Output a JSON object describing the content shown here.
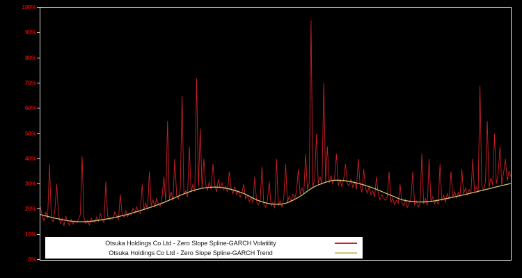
{
  "window": {
    "background": "#000000"
  },
  "chart_data": {
    "type": "line",
    "title": "",
    "xlabel": "",
    "ylabel": "",
    "ylim": [
      0,
      100
    ],
    "grid": false,
    "legend_position": "bottom-left",
    "axis_label_color": "#dd0000",
    "plot_border_color": "#e2e2e2",
    "yticks": [
      {
        "value": 100,
        "label": "100%"
      },
      {
        "value": 90,
        "label": "90%"
      },
      {
        "value": 80,
        "label": "80%"
      },
      {
        "value": 70,
        "label": "70%"
      },
      {
        "value": 60,
        "label": "60%"
      },
      {
        "value": 50,
        "label": "50%"
      },
      {
        "value": 40,
        "label": "40%"
      },
      {
        "value": 30,
        "label": "30%"
      },
      {
        "value": 20,
        "label": "20%"
      },
      {
        "value": 10,
        "label": "10%"
      },
      {
        "value": 0,
        "label": "0%"
      }
    ],
    "series": [
      {
        "name": "Otsuka Holdings Co Ltd - Zero Slope Spline-GARCH Volatility",
        "color": "#cd2026",
        "unit": "%",
        "values": [
          21,
          17.5,
          15.5,
          19,
          16.5,
          38,
          17,
          15,
          20,
          30,
          18,
          14.5,
          16.5,
          13.5,
          17.5,
          15,
          13.8,
          16,
          14.2,
          15.5,
          14.8,
          16.2,
          18,
          41,
          17,
          14.5,
          15.8,
          13.9,
          16.5,
          15.2,
          14.9,
          17,
          15.3,
          18.5,
          16,
          14.8,
          31,
          17.5,
          15.9,
          16.4,
          16.2,
          19,
          17.4,
          15.8,
          26,
          18,
          16.9,
          19.5,
          17.2,
          18.3,
          17.8,
          20.5,
          18.6,
          21,
          19.2,
          18.4,
          30,
          20.1,
          22.5,
          19.8,
          35,
          21.5,
          23.8,
          20.9,
          24.5,
          22,
          21.3,
          25,
          33,
          22.8,
          55,
          24,
          27,
          23.5,
          40,
          25.5,
          24.2,
          28,
          65,
          26,
          27.5,
          25,
          45,
          26.8,
          30,
          27,
          72,
          29,
          52,
          28.2,
          40,
          30,
          27.5,
          31,
          28,
          38,
          29.5,
          27,
          32,
          28.5,
          30.5,
          27.8,
          29.3,
          26.9,
          35,
          28.4,
          26.2,
          29,
          25.8,
          27.3,
          24.9,
          26.8,
          30,
          24.2,
          25.6,
          23.1,
          24.8,
          22.5,
          33,
          23.4,
          21.8,
          23.5,
          37,
          22,
          20.9,
          23.8,
          31,
          21.4,
          22.7,
          20.5,
          40,
          21.5,
          23.4,
          20.8,
          24.6,
          38,
          22.9,
          25.3,
          23.1,
          26,
          24.4,
          27,
          36,
          25.9,
          28.5,
          26.3,
          42,
          28,
          30.5,
          95,
          29,
          32,
          50,
          30.2,
          33,
          29.8,
          70,
          31,
          45,
          30.4,
          33.5,
          30,
          32.8,
          42,
          29.5,
          31.8,
          28.9,
          32.4,
          38,
          30.1,
          29.3,
          32,
          28.6,
          31.2,
          27.9,
          40,
          29.4,
          26.8,
          36,
          28.3,
          26.5,
          29,
          25.8,
          27.4,
          24.9,
          33,
          26.1,
          23.8,
          25.9,
          24.4,
          23.6,
          25.2,
          35,
          22.8,
          24.5,
          21.9,
          23.7,
          22.4,
          30,
          22.6,
          21.5,
          23.9,
          20.8,
          22.6,
          24.2,
          35,
          21.7,
          23.3,
          20.9,
          22.4,
          42,
          22.1,
          24.3,
          21.6,
          40,
          23,
          25.1,
          22.2,
          24,
          21.9,
          38,
          23.4,
          25.7,
          22.8,
          26.3,
          24.1,
          35,
          25,
          27.2,
          24.6,
          26.8,
          24.9,
          36,
          26.2,
          28.4,
          25.7,
          27.9,
          26.4,
          40,
          27.1,
          28.9,
          26.7,
          69,
          29.3,
          27.6,
          31,
          55,
          28.8,
          32.5,
          29.6,
          50,
          30.2,
          33.8,
          45,
          29.7,
          34.6,
          40,
          31.4,
          35.2,
          33
        ]
      },
      {
        "name": "Otsuka Holdings Co Ltd - Zero Slope Spline-GARCH Trend",
        "color": "#c8c86e",
        "unit": "%",
        "control_points": [
          [
            0.0,
            18.0
          ],
          [
            0.03,
            16.6
          ],
          [
            0.07,
            15.3
          ],
          [
            0.1,
            15.2
          ],
          [
            0.14,
            16.2
          ],
          [
            0.18,
            17.8
          ],
          [
            0.22,
            20.0
          ],
          [
            0.26,
            22.6
          ],
          [
            0.3,
            25.8
          ],
          [
            0.33,
            27.8
          ],
          [
            0.36,
            28.8
          ],
          [
            0.39,
            28.6
          ],
          [
            0.43,
            26.5
          ],
          [
            0.46,
            23.8
          ],
          [
            0.49,
            22.2
          ],
          [
            0.52,
            22.4
          ],
          [
            0.55,
            25.0
          ],
          [
            0.58,
            28.8
          ],
          [
            0.61,
            31.0
          ],
          [
            0.63,
            31.6
          ],
          [
            0.66,
            31.0
          ],
          [
            0.7,
            29.0
          ],
          [
            0.74,
            26.0
          ],
          [
            0.77,
            23.8
          ],
          [
            0.8,
            23.0
          ],
          [
            0.83,
            23.2
          ],
          [
            0.86,
            24.2
          ],
          [
            0.9,
            25.8
          ],
          [
            0.94,
            27.6
          ],
          [
            0.97,
            29.0
          ],
          [
            1.0,
            30.3
          ]
        ]
      }
    ]
  },
  "legend": {
    "items": [
      {
        "label": "Otsuka Holdings Co Ltd - Zero Slope Spline-GARCH Volatility",
        "color": "#cd2026"
      },
      {
        "label": "Otsuka Holdings Co Ltd - Zero Slope Spline-GARCH Trend",
        "color": "#c8c86e"
      }
    ]
  }
}
